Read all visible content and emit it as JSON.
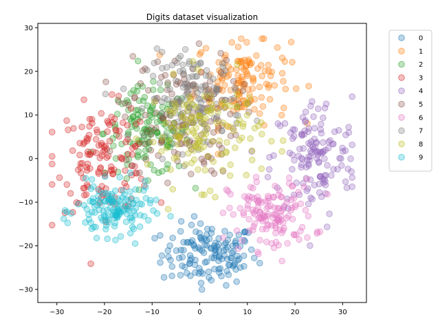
{
  "chart_data": {
    "type": "scatter",
    "title": "Digits dataset visualization",
    "xlabel": "",
    "ylabel": "",
    "xlim": [
      -34,
      35
    ],
    "ylim": [
      -33,
      31
    ],
    "x_ticks": [
      -30,
      -20,
      -10,
      0,
      10,
      20,
      30
    ],
    "y_ticks": [
      -30,
      -20,
      -10,
      0,
      10,
      20,
      30
    ],
    "grid": false,
    "legend_position": "outside-top-right",
    "marker_alpha": 0.3,
    "series": [
      {
        "name": "0",
        "color": "#1f77b4",
        "center": [
          2,
          -22
        ],
        "spread": [
          5,
          3.5
        ],
        "count": 140
      },
      {
        "name": "1",
        "color": "#ff7f0e",
        "center": [
          9,
          18
        ],
        "spread": [
          5,
          5
        ],
        "count": 140
      },
      {
        "name": "2",
        "color": "#2ca02c",
        "center": [
          -11,
          6
        ],
        "spread": [
          4.5,
          5
        ],
        "count": 140
      },
      {
        "name": "3",
        "color": "#d62728",
        "center": [
          -20,
          0
        ],
        "spread": [
          5,
          6
        ],
        "count": 140
      },
      {
        "name": "4",
        "color": "#9467bd",
        "center": [
          24,
          0
        ],
        "spread": [
          4.5,
          7
        ],
        "count": 140
      },
      {
        "name": "5",
        "color": "#8c564b",
        "center": [
          -4,
          10
        ],
        "spread": [
          6,
          7
        ],
        "count": 140
      },
      {
        "name": "6",
        "color": "#e377c2",
        "center": [
          15,
          -13
        ],
        "spread": [
          4.5,
          4
        ],
        "count": 140
      },
      {
        "name": "7",
        "color": "#7f7f7f",
        "center": [
          -1,
          14
        ],
        "spread": [
          5,
          5
        ],
        "count": 140
      },
      {
        "name": "8",
        "color": "#bcbd22",
        "center": [
          1,
          6
        ],
        "spread": [
          6,
          6
        ],
        "count": 140
      },
      {
        "name": "9",
        "color": "#17becf",
        "center": [
          -18,
          -12
        ],
        "spread": [
          4,
          3
        ],
        "count": 140
      }
    ]
  }
}
